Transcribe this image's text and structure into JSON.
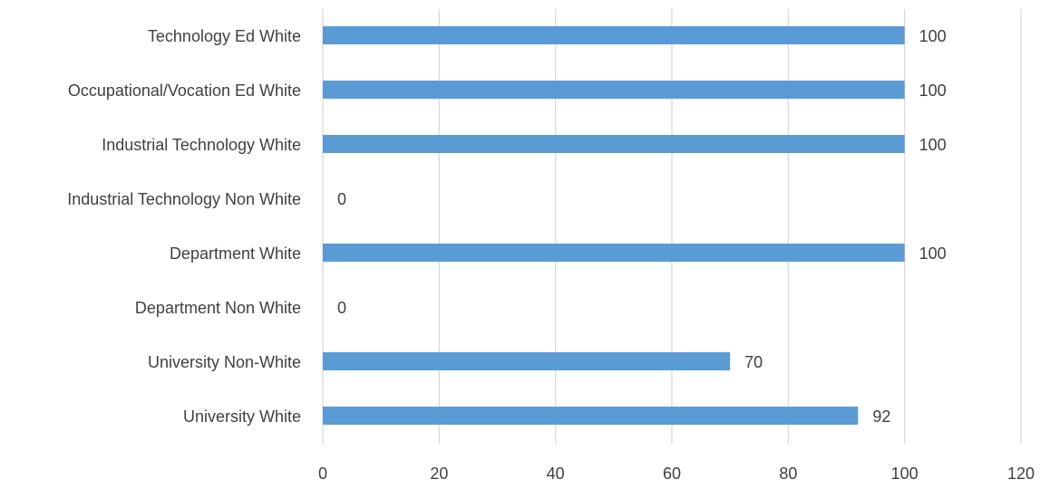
{
  "chart_data": {
    "type": "bar",
    "orientation": "horizontal",
    "categories": [
      "Technology Ed White",
      "Occupational/Vocation Ed White",
      "Industrial Technology White",
      "Industrial Technology Non White",
      "Department White",
      "Department Non White",
      "University Non-White",
      "University White"
    ],
    "series": [
      {
        "values": [
          100,
          100,
          100,
          0,
          100,
          0,
          70,
          92
        ],
        "color": "#5b9bd5"
      }
    ],
    "data_labels": true,
    "xlim": [
      0,
      120
    ],
    "x_ticks": [
      0,
      20,
      40,
      60,
      80,
      100,
      120
    ],
    "title": "",
    "xlabel": "",
    "ylabel": "",
    "grid": "vertical",
    "legend": "none",
    "colors": {
      "bar": "#5b9bd5",
      "grid": "#d9d9d9",
      "text": "#404040"
    }
  }
}
